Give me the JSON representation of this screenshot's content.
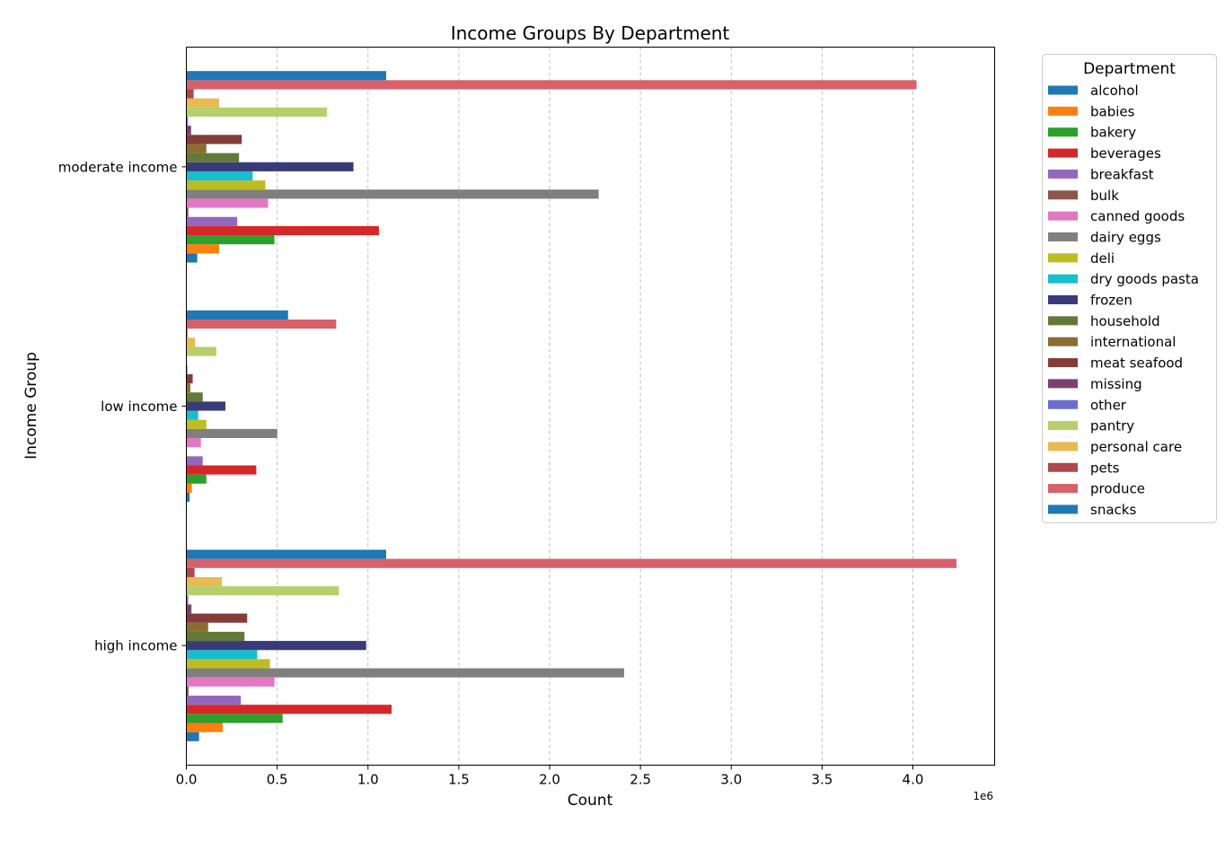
{
  "chart_data": {
    "type": "bar",
    "orientation": "horizontal",
    "title": "Income Groups By Department",
    "xlabel": "Count",
    "ylabel": "Income Group",
    "x_offset_label": "1e6",
    "x_scale_factor": 1000000,
    "xlim": [
      0,
      4450000
    ],
    "x_ticks": [
      0,
      500000,
      1000000,
      1500000,
      2000000,
      2500000,
      3000000,
      3500000,
      4000000
    ],
    "x_tick_labels": [
      "0.0",
      "0.5",
      "1.0",
      "1.5",
      "2.0",
      "2.5",
      "3.0",
      "3.5",
      "4.0"
    ],
    "grid": "x-dashed",
    "legend_title": "Department",
    "legend_position": "outside-top-right",
    "categories": [
      "high income",
      "low income",
      "moderate income"
    ],
    "series": [
      {
        "name": "alcohol",
        "color": "#1f77b4",
        "values": [
          70000,
          18000,
          60000
        ]
      },
      {
        "name": "babies",
        "color": "#ff7f0e",
        "values": [
          200000,
          30000,
          180000
        ]
      },
      {
        "name": "bakery",
        "color": "#2ca02c",
        "values": [
          530000,
          110000,
          485000
        ]
      },
      {
        "name": "beverages",
        "color": "#d62728",
        "values": [
          1130000,
          385000,
          1060000
        ]
      },
      {
        "name": "breakfast",
        "color": "#9467bd",
        "values": [
          300000,
          90000,
          280000
        ]
      },
      {
        "name": "bulk",
        "color": "#8c564b",
        "values": [
          12000,
          3000,
          11000
        ]
      },
      {
        "name": "canned goods",
        "color": "#e377c2",
        "values": [
          485000,
          80000,
          450000
        ]
      },
      {
        "name": "dairy eggs",
        "color": "#7f7f7f",
        "values": [
          2410000,
          500000,
          2270000
        ]
      },
      {
        "name": "deli",
        "color": "#bcbd22",
        "values": [
          460000,
          110000,
          435000
        ]
      },
      {
        "name": "dry goods pasta",
        "color": "#17becf",
        "values": [
          390000,
          65000,
          365000
        ]
      },
      {
        "name": "frozen",
        "color": "#393b79",
        "values": [
          990000,
          215000,
          920000
        ]
      },
      {
        "name": "household",
        "color": "#637939",
        "values": [
          320000,
          90000,
          290000
        ]
      },
      {
        "name": "international",
        "color": "#8c6d31",
        "values": [
          120000,
          22000,
          110000
        ]
      },
      {
        "name": "meat seafood",
        "color": "#843c39",
        "values": [
          335000,
          35000,
          305000
        ]
      },
      {
        "name": "missing",
        "color": "#7b4173",
        "values": [
          28000,
          5000,
          26000
        ]
      },
      {
        "name": "other",
        "color": "#6b6ecf",
        "values": [
          10000,
          2000,
          9000
        ]
      },
      {
        "name": "pantry",
        "color": "#b5cf6b",
        "values": [
          840000,
          165000,
          775000
        ]
      },
      {
        "name": "personal care",
        "color": "#e7ba52",
        "values": [
          195000,
          48000,
          180000
        ]
      },
      {
        "name": "pets",
        "color": "#ad494a",
        "values": [
          45000,
          6000,
          40000
        ]
      },
      {
        "name": "produce",
        "color": "#d6616b",
        "values": [
          4240000,
          825000,
          4020000
        ]
      },
      {
        "name": "snacks",
        "color": "#1f77b4",
        "values": [
          1100000,
          560000,
          1100000
        ]
      }
    ]
  }
}
